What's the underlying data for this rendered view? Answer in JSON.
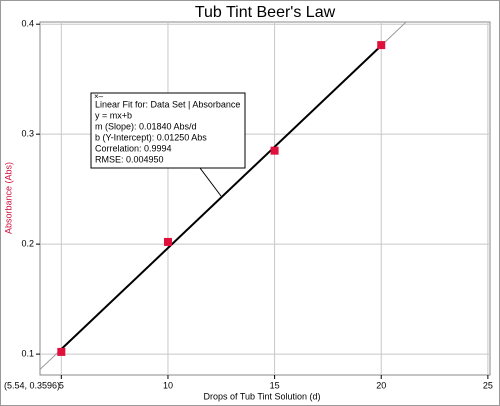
{
  "chart_data": {
    "type": "scatter",
    "title": "Tub Tint Beer's Law",
    "x_label": "Drops of Tub Tint Solution (d)",
    "y_label": "Absorbance (Abs)",
    "x": [
      5,
      10,
      15,
      20
    ],
    "series": [
      {
        "name": "Absorbance",
        "color": "#e0103c",
        "values": [
          0.102,
          0.202,
          0.285,
          0.381
        ]
      }
    ],
    "xlim": [
      4.0,
      25.1
    ],
    "xticks": [
      5,
      10,
      15,
      20,
      25
    ],
    "ylim": [
      0.081,
      0.402
    ],
    "yticks": [
      0.1,
      0.2,
      0.3,
      0.4
    ],
    "grid": true,
    "fit": {
      "slope": 0.0184,
      "intercept": 0.0125
    },
    "annotation": [
      "Linear Fit for:  Data Set | Absorbance",
      "y = mx+b",
      "m (Slope): 0.01840 Abs/d",
      "b (Y-Intercept): 0.01250 Abs",
      "Correlation: 0.9994",
      "RMSE: 0.004950"
    ],
    "cursor_readout": "(5.54, 0.3596)"
  }
}
